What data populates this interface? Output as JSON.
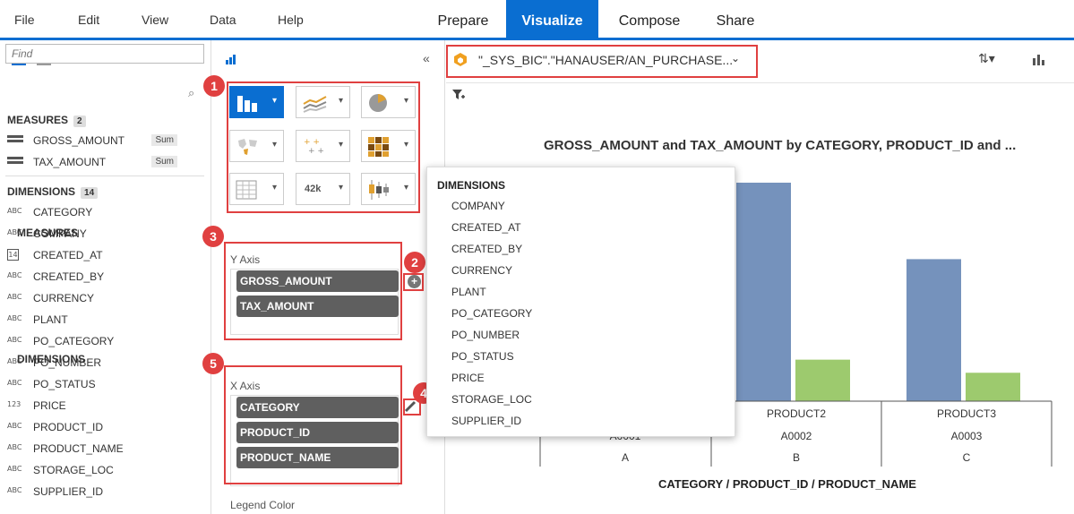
{
  "menu": [
    "File",
    "Edit",
    "View",
    "Data",
    "Help"
  ],
  "modes": [
    "Prepare",
    "Visualize",
    "Compose",
    "Share"
  ],
  "active_mode": "Visualize",
  "left_panel": {
    "find_placeholder": "Find",
    "measures_title": "MEASURES",
    "measures_count": "2",
    "measures": [
      {
        "name": "GROSS_AMOUNT",
        "agg": "Sum"
      },
      {
        "name": "TAX_AMOUNT",
        "agg": "Sum"
      }
    ],
    "dimensions_title": "DIMENSIONS",
    "dimensions_count": "14",
    "dimensions": [
      {
        "type": "ABC",
        "name": "CATEGORY"
      },
      {
        "type": "ABC",
        "name": "COMPANY"
      },
      {
        "type": "14",
        "name": "CREATED_AT"
      },
      {
        "type": "ABC",
        "name": "CREATED_BY"
      },
      {
        "type": "ABC",
        "name": "CURRENCY"
      },
      {
        "type": "ABC",
        "name": "PLANT"
      },
      {
        "type": "ABC",
        "name": "PO_CATEGORY"
      },
      {
        "type": "ABC",
        "name": "PO_NUMBER"
      },
      {
        "type": "ABC",
        "name": "PO_STATUS"
      },
      {
        "type": "123",
        "name": "PRICE"
      },
      {
        "type": "ABC",
        "name": "PRODUCT_ID"
      },
      {
        "type": "ABC",
        "name": "PRODUCT_NAME"
      },
      {
        "type": "ABC",
        "name": "STORAGE_LOC"
      },
      {
        "type": "ABC",
        "name": "SUPPLIER_ID"
      }
    ]
  },
  "mid_panel": {
    "measures_heading": "MEASURES",
    "y_axis_label": "Y Axis",
    "y_items": [
      "GROSS_AMOUNT",
      "TAX_AMOUNT"
    ],
    "dimensions_heading": "DIMENSIONS",
    "x_axis_label": "X Axis",
    "x_items": [
      "CATEGORY",
      "PRODUCT_ID",
      "PRODUCT_NAME"
    ],
    "legend_label": "Legend Color",
    "numeric_picker_label": "42k",
    "callouts": [
      "1",
      "2",
      "3",
      "4",
      "5"
    ]
  },
  "source": "\"_SYS_BIC\".\"HANAUSER/AN_PURCHASE...",
  "popup": {
    "title": "DIMENSIONS",
    "items": [
      "COMPANY",
      "CREATED_AT",
      "CREATED_BY",
      "CURRENCY",
      "PLANT",
      "PO_CATEGORY",
      "PO_NUMBER",
      "PO_STATUS",
      "PRICE",
      "STORAGE_LOC",
      "SUPPLIER_ID"
    ]
  },
  "colors": {
    "accent": "#0a6ed1",
    "callout": "#e04040",
    "gross_amount_bar": "#7592bc",
    "tax_amount_bar": "#9dca6e",
    "pill": "#5f5f5f"
  },
  "chart_data": {
    "type": "bar",
    "title": "GROSS_AMOUNT and TAX_AMOUNT by CATEGORY, PRODUCT_ID and ...",
    "xlabel": "CATEGORY / PRODUCT_ID / PRODUCT_NAME",
    "categories": [
      {
        "category": "A",
        "product_id": "A0001",
        "product_name": ""
      },
      {
        "category": "B",
        "product_id": "A0002",
        "product_name": "PRODUCT2"
      },
      {
        "category": "C",
        "product_id": "A0003",
        "product_name": "PRODUCT3"
      }
    ],
    "series": [
      {
        "values": [
          null,
          100,
          65
        ]
      },
      {
        "values": [
          null,
          19,
          13
        ]
      }
    ],
    "ylim": [
      0,
      100
    ],
    "grid": false
  }
}
